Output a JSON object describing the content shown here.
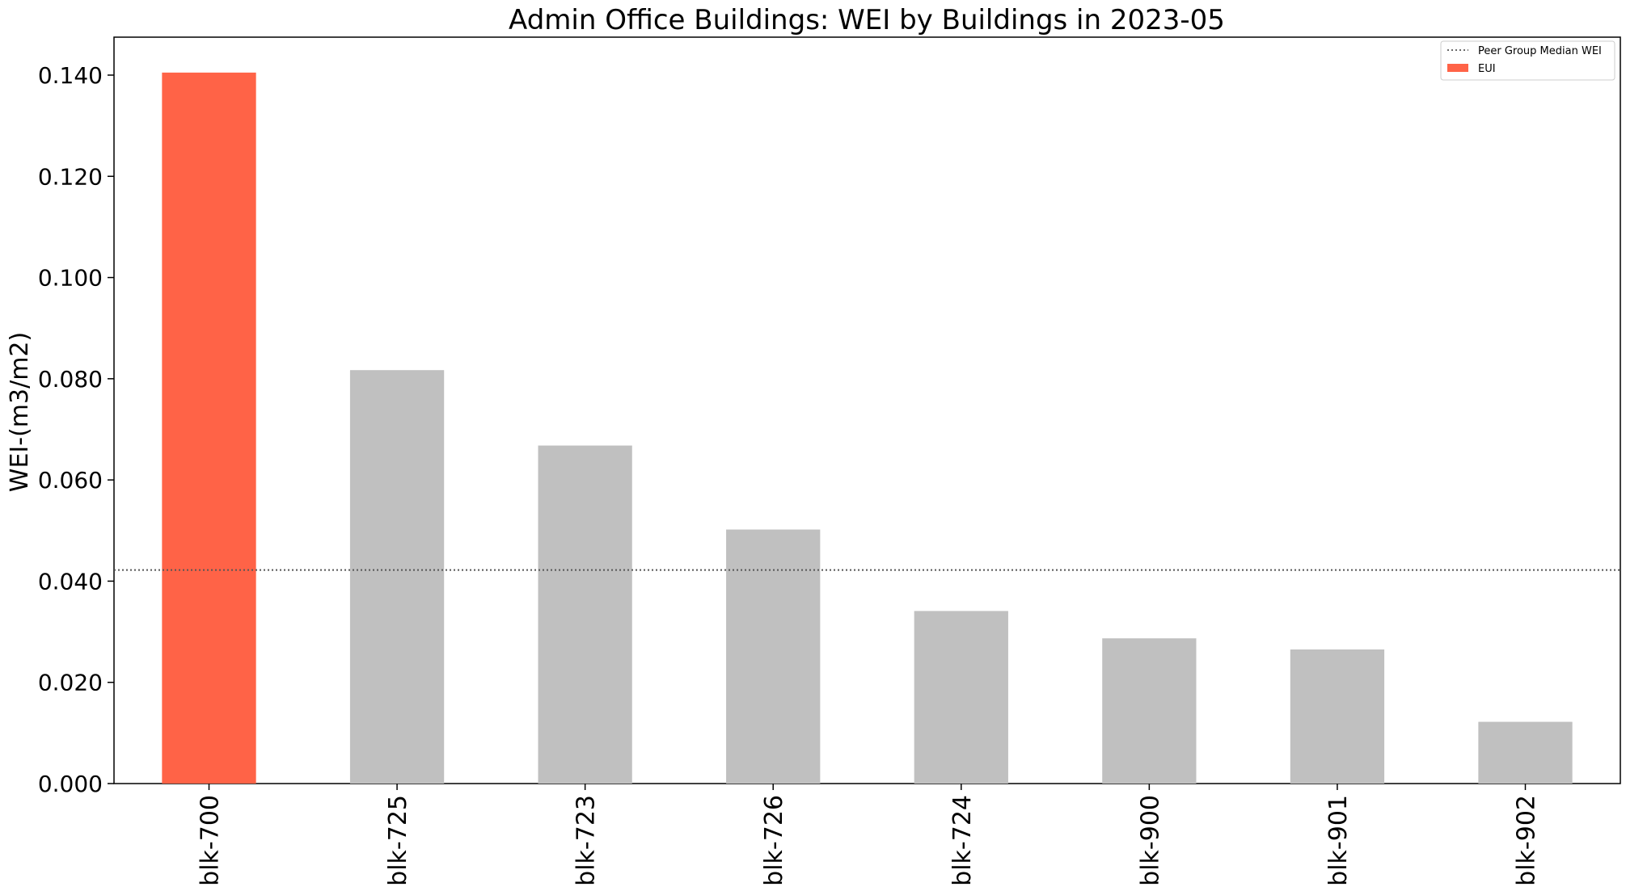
{
  "chart_data": {
    "type": "bar",
    "title": "Admin Office Buildings: WEI by Buildings in 2023-05",
    "xlabel": "",
    "ylabel": "WEI-(m3/m2)",
    "categories": [
      "blk-700",
      "blk-725",
      "blk-723",
      "blk-726",
      "blk-724",
      "blk-900",
      "blk-901",
      "blk-902"
    ],
    "values": [
      0.1405,
      0.0817,
      0.0668,
      0.0502,
      0.0341,
      0.0287,
      0.0265,
      0.0122
    ],
    "highlight_category": "blk-700",
    "ylim": [
      0,
      0.1475
    ],
    "yticks": [
      0.0,
      0.02,
      0.04,
      0.06,
      0.08,
      0.1,
      0.12,
      0.14
    ],
    "ytick_labels": [
      "0.000",
      "0.020",
      "0.040",
      "0.060",
      "0.080",
      "0.100",
      "0.120",
      "0.140"
    ],
    "reference_line": {
      "name": "Peer Group Median WEI",
      "value": 0.0422,
      "style": "dotted",
      "color": "#555555"
    },
    "legend": {
      "placement": "top-right",
      "entries": [
        {
          "label": "Peer Group Median WEI",
          "kind": "line"
        },
        {
          "label": "EUI",
          "kind": "patch"
        }
      ]
    },
    "colors": {
      "highlight": "#ff6347",
      "default": "#c0c0c0"
    },
    "grid": false
  }
}
